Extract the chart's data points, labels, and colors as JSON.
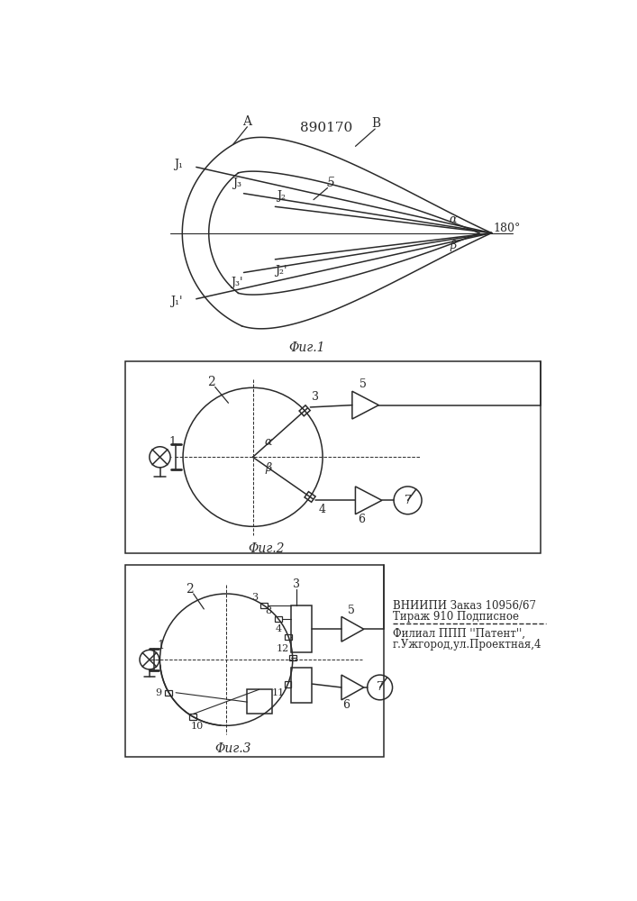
{
  "patent_number": "890170",
  "background_color": "#ffffff",
  "line_color": "#2a2a2a",
  "fig1_caption": "Φиг.1",
  "fig2_caption": "Φиг.2",
  "fig3_caption": "Φиг.3",
  "label_A": "A",
  "label_B": "B",
  "label_5_fig1": "5",
  "label_180": "180°",
  "vnipi_line1": "ВНИИПИ Заказ 10956/67",
  "vnipi_line2": "Тираж 910 Подписное",
  "filial_line1": "Филиал ППП ''Патент'',",
  "filial_line2": "г.Ужгород,ул.Проектная,4"
}
